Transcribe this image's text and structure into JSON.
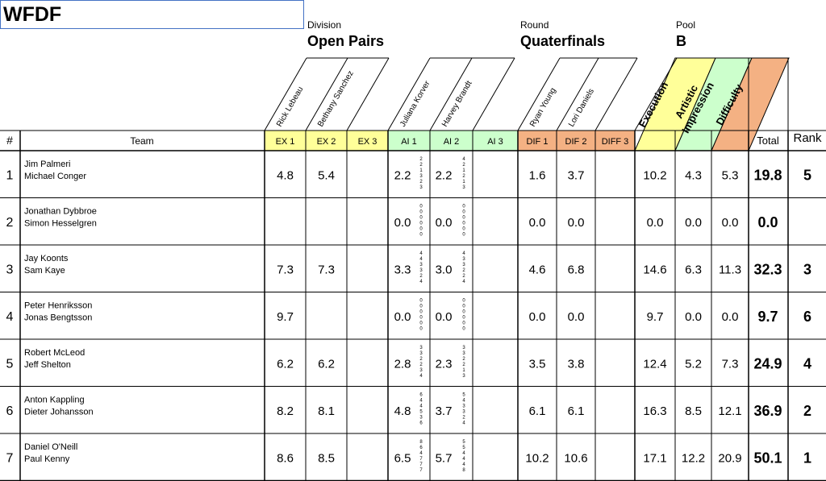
{
  "org": "WFDF",
  "meta": {
    "division_label": "Division",
    "division": "Open Pairs",
    "round_label": "Round",
    "round": "Quaterfinals",
    "pool_label": "Pool",
    "pool": "B"
  },
  "judges": {
    "ex": [
      "Rick Lebeau",
      "Bethany Sanchez"
    ],
    "ai": [
      "Juliana Korver",
      "Harvey Brandt"
    ],
    "dif": [
      "Ryan Young",
      "Lori Daniels"
    ]
  },
  "categories": [
    "Execution",
    "Artistic Impression",
    "Difficulty"
  ],
  "headers": {
    "num": "#",
    "team": "Team",
    "ex1": "EX 1",
    "ex2": "EX 2",
    "ex3": "EX 3",
    "ai1": "AI 1",
    "ai2": "AI 2",
    "ai3": "AI 3",
    "dif1": "DIF 1",
    "dif2": "DIF 2",
    "diff3": "DIFF 3",
    "total": "Total",
    "rank": "Rank"
  },
  "colors": {
    "execution": "#ffff99",
    "artistic": "#ccffcc",
    "difficulty": "#f4b183",
    "border": "#000000",
    "title_box_border": "#4472c4"
  },
  "rows": [
    {
      "num": "1",
      "p1": "Jim Palmeri",
      "p2": "Michael Conger",
      "ex1": "4.8",
      "ex2": "5.4",
      "ex3": "",
      "ai1": "2.2",
      "ai1_sub": [
        "2",
        "2",
        "1",
        "3",
        "2",
        "3"
      ],
      "ai2": "2.2",
      "ai2_sub": [
        "4",
        "2",
        "1",
        "2",
        "1",
        "3"
      ],
      "ai3": "",
      "dif1": "1.6",
      "dif2": "3.7",
      "diff3": "",
      "exe": "10.2",
      "art": "4.3",
      "dif": "5.3",
      "total": "19.8",
      "rank": "5"
    },
    {
      "num": "2",
      "p1": "Jonathan Dybbroe",
      "p2": "Simon Hesselgren",
      "ex1": "",
      "ex2": "",
      "ex3": "",
      "ai1": "0.0",
      "ai1_sub": [
        "0",
        "0",
        "0",
        "0",
        "0",
        "0"
      ],
      "ai2": "0.0",
      "ai2_sub": [
        "0",
        "0",
        "0",
        "0",
        "0",
        "0"
      ],
      "ai3": "",
      "dif1": "0.0",
      "dif2": "0.0",
      "diff3": "",
      "exe": "0.0",
      "art": "0.0",
      "dif": "0.0",
      "total": "0.0",
      "rank": ""
    },
    {
      "num": "3",
      "p1": "Jay Koonts",
      "p2": "Sam Kaye",
      "ex1": "7.3",
      "ex2": "7.3",
      "ex3": "",
      "ai1": "3.3",
      "ai1_sub": [
        "4",
        "4",
        "3",
        "3",
        "2",
        "4"
      ],
      "ai2": "3.0",
      "ai2_sub": [
        "4",
        "3",
        "3",
        "2",
        "2",
        "4"
      ],
      "ai3": "",
      "dif1": "4.6",
      "dif2": "6.8",
      "diff3": "",
      "exe": "14.6",
      "art": "6.3",
      "dif": "11.3",
      "total": "32.3",
      "rank": "3"
    },
    {
      "num": "4",
      "p1": "Peter Henriksson",
      "p2": "Jonas Bengtsson",
      "ex1": "9.7",
      "ex2": "",
      "ex3": "",
      "ai1": "0.0",
      "ai1_sub": [
        "0",
        "0",
        "0",
        "0",
        "0",
        "0"
      ],
      "ai2": "0.0",
      "ai2_sub": [
        "0",
        "0",
        "0",
        "0",
        "0",
        "0"
      ],
      "ai3": "",
      "dif1": "0.0",
      "dif2": "0.0",
      "diff3": "",
      "exe": "9.7",
      "art": "0.0",
      "dif": "0.0",
      "total": "9.7",
      "rank": "6"
    },
    {
      "num": "5",
      "p1": "Robert McLeod",
      "p2": "Jeff Shelton",
      "ex1": "6.2",
      "ex2": "6.2",
      "ex3": "",
      "ai1": "2.8",
      "ai1_sub": [
        "3",
        "3",
        "2",
        "2",
        "3",
        "4"
      ],
      "ai2": "2.3",
      "ai2_sub": [
        "3",
        "3",
        "2",
        "2",
        "1",
        "3"
      ],
      "ai3": "",
      "dif1": "3.5",
      "dif2": "3.8",
      "diff3": "",
      "exe": "12.4",
      "art": "5.2",
      "dif": "7.3",
      "total": "24.9",
      "rank": "4"
    },
    {
      "num": "6",
      "p1": "Anton Kappling",
      "p2": "Dieter Johansson",
      "ex1": "8.2",
      "ex2": "8.1",
      "ex3": "",
      "ai1": "4.8",
      "ai1_sub": [
        "6",
        "4",
        "4",
        "5",
        "3",
        "6"
      ],
      "ai2": "3.7",
      "ai2_sub": [
        "5",
        "4",
        "3",
        "3",
        "2",
        "4"
      ],
      "ai3": "",
      "dif1": "6.1",
      "dif2": "6.1",
      "diff3": "",
      "exe": "16.3",
      "art": "8.5",
      "dif": "12.1",
      "total": "36.9",
      "rank": "2"
    },
    {
      "num": "7",
      "p1": "Daniel O'Neill",
      "p2": "Paul Kenny",
      "ex1": "8.6",
      "ex2": "8.5",
      "ex3": "",
      "ai1": "6.5",
      "ai1_sub": [
        "8",
        "6",
        "4",
        "7",
        "7",
        "7"
      ],
      "ai2": "5.7",
      "ai2_sub": [
        "5",
        "5",
        "4",
        "4",
        "4",
        "8"
      ],
      "ai3": "",
      "dif1": "10.2",
      "dif2": "10.6",
      "diff3": "",
      "exe": "17.1",
      "art": "12.2",
      "dif": "20.9",
      "total": "50.1",
      "rank": "1"
    }
  ]
}
